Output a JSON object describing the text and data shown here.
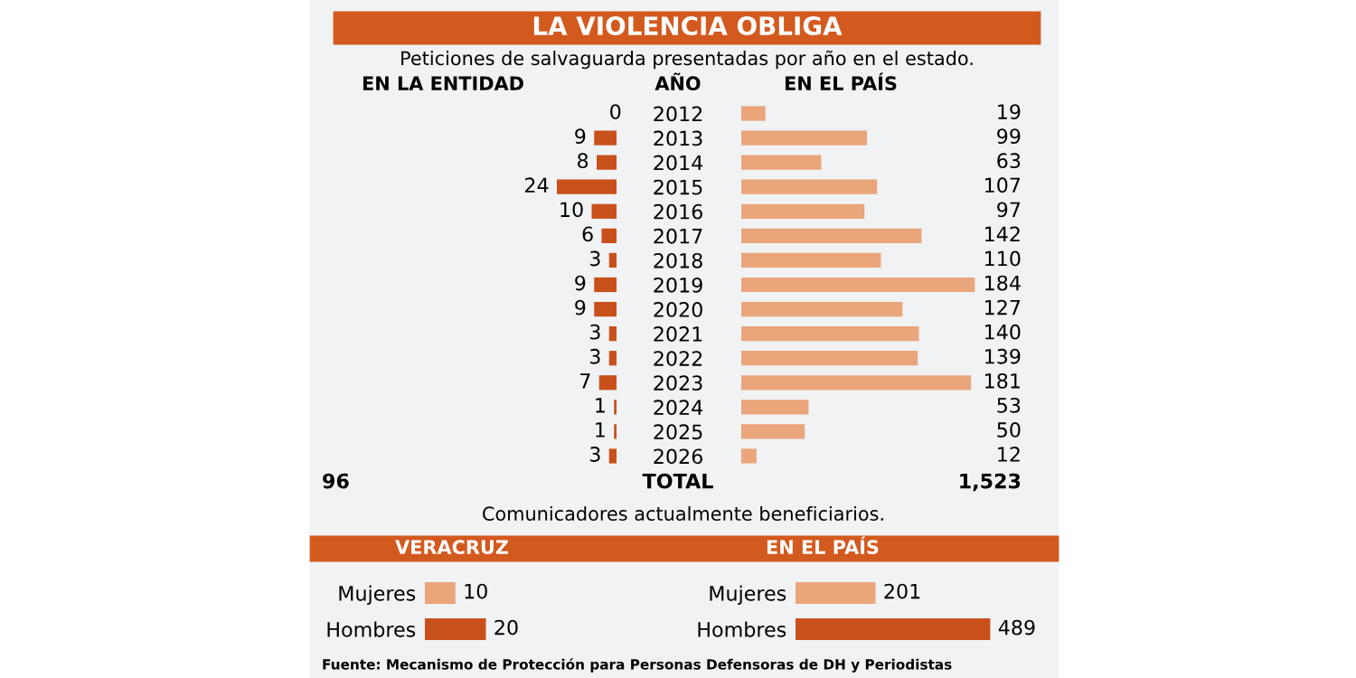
{
  "chart_data": [
    {
      "type": "bar",
      "orientation": "horizontal",
      "title": "LA VIOLENCIA OBLIGA",
      "subtitle": "Peticiones de salvaguarda presentadas por año en el estado.",
      "xlabel": "EN LA ENTIDAD",
      "ylabel": "AÑO",
      "categories": [
        "2012",
        "2013",
        "2014",
        "2015",
        "2016",
        "2017",
        "2018",
        "2019",
        "2020",
        "2021",
        "2022",
        "2023",
        "2024",
        "2025",
        "2026"
      ],
      "values": [
        0,
        9,
        8,
        24,
        10,
        6,
        3,
        9,
        9,
        3,
        3,
        7,
        1,
        1,
        3
      ],
      "color": "#c8511b",
      "data_labels": true,
      "tick_labels": "y",
      "grid": false,
      "annotations": [
        "96",
        "TOTAL"
      ]
    },
    {
      "type": "bar",
      "orientation": "horizontal",
      "xlabel": "EN EL PAÍS",
      "categories": [
        "2012",
        "2013",
        "2014",
        "2015",
        "2016",
        "2017",
        "2018",
        "2019",
        "2020",
        "2021",
        "2022",
        "2023",
        "2024",
        "2025",
        "2026"
      ],
      "values": [
        19,
        99,
        63,
        107,
        97,
        142,
        110,
        184,
        127,
        140,
        139,
        181,
        53,
        50,
        12
      ],
      "color": "#eaa57a",
      "data_labels": true,
      "tick_labels": false,
      "grid": false,
      "annotations": [
        "1,523"
      ]
    },
    {
      "type": "bar",
      "orientation": "horizontal",
      "subtitle": "Comunicadores actualmente beneficiarios.",
      "title": "VERACRUZ",
      "categories": [
        "Mujeres",
        "Hombres"
      ],
      "values": [
        10,
        20
      ],
      "colors": [
        "#eaa57a",
        "#c8511b"
      ],
      "data_labels": true,
      "tick_labels": "y",
      "grid": false
    },
    {
      "type": "bar",
      "orientation": "horizontal",
      "title": "EN EL PAÍS",
      "categories": [
        "Mujeres",
        "Hombres"
      ],
      "values": [
        201,
        489
      ],
      "colors": [
        "#eaa57a",
        "#c8511b"
      ],
      "data_labels": true,
      "tick_labels": "y",
      "grid": false,
      "annotations": [
        "Fuente: Mecanismo de Protección para Personas Defensoras de DH y Periodistas"
      ]
    }
  ]
}
